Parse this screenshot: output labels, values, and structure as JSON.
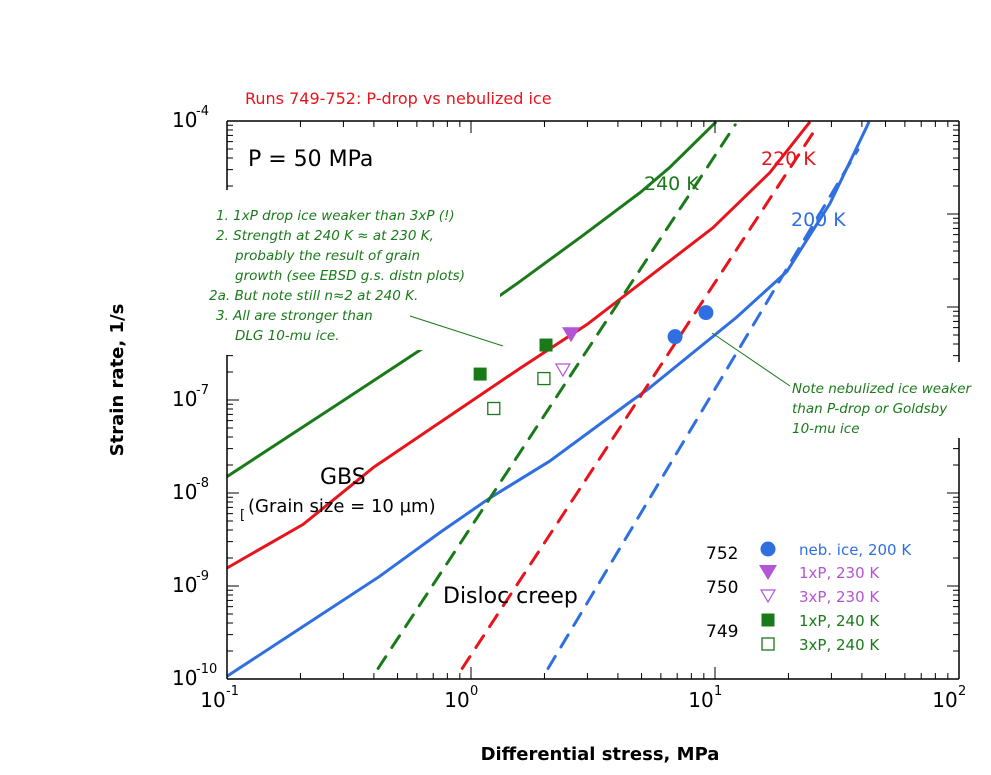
{
  "chart_data": {
    "type": "line",
    "title": "Runs 749-752: P-drop vs nebulized ice",
    "xlabel": "Differential stress, MPa",
    "ylabel": "Strain rate, 1/s",
    "xscale": "log",
    "yscale": "log",
    "xlim": [
      0.1,
      100
    ],
    "ylim": [
      1e-10,
      0.0001
    ],
    "x_ticks": [
      {
        "base": "10",
        "exp": "-1",
        "value": 0.1
      },
      {
        "base": "10",
        "exp": "0",
        "value": 1
      },
      {
        "base": "10",
        "exp": "1",
        "value": 10
      },
      {
        "base": "10",
        "exp": "2",
        "value": 100
      }
    ],
    "y_ticks": [
      {
        "base": "10",
        "exp": "-4",
        "value": 0.0001
      },
      {
        "base": "10",
        "exp": "-7",
        "value": 1e-07
      },
      {
        "base": "10",
        "exp": "-8",
        "value": 1e-08
      },
      {
        "base": "10",
        "exp": "-9",
        "value": 1e-09
      },
      {
        "base": "10",
        "exp": "-10",
        "value": 1e-10
      }
    ],
    "colors": {
      "k240": "#1a7a1a",
      "k220": "#e8141c",
      "k200": "#2f6fe0",
      "k230": "#b455d6"
    },
    "series": [
      {
        "name": "240 K total (GBS + disloc)",
        "color": "#1a7a1a",
        "style": "solid",
        "x": [
          0.1,
          0.29,
          0.82,
          1.55,
          2.88,
          4.93,
          6.55,
          10.1
        ],
        "y": [
          1.5e-08,
          9.3e-08,
          5.6e-07,
          1.8e-06,
          5.9e-06,
          1.7e-05,
          3.2e-05,
          9.8e-05
        ]
      },
      {
        "name": "220 K total (GBS + disloc)",
        "color": "#e8141c",
        "style": "solid",
        "x": [
          0.1,
          0.205,
          0.4,
          1.59,
          2.99,
          9.8,
          16.8,
          24.5
        ],
        "y": [
          1.56e-09,
          4.6e-09,
          1.9e-08,
          2.2e-07,
          6.5e-07,
          7.1e-06,
          2.8e-05,
          9.8e-05
        ]
      },
      {
        "name": "200 K total (GBS + disloc)",
        "color": "#2f6fe0",
        "style": "solid",
        "x": [
          0.1,
          0.42,
          0.75,
          1.2,
          2.1,
          4.6,
          5.3,
          12.3,
          19.7,
          29.6,
          42.8
        ],
        "y": [
          1.07e-10,
          1.26e-09,
          3.8e-09,
          8.9e-09,
          2.2e-08,
          1e-07,
          1.3e-07,
          7.8e-07,
          2.4e-06,
          1.3e-05,
          9.8e-05
        ]
      },
      {
        "name": "240 K disloc creep",
        "color": "#1a7a1a",
        "style": "dashed",
        "x": [
          0.416,
          12.1
        ],
        "y": [
          1.3e-10,
          9.1e-05
        ]
      },
      {
        "name": "220 K disloc creep",
        "color": "#e8141c",
        "style": "dashed",
        "x": [
          0.92,
          26.2
        ],
        "y": [
          1.3e-10,
          8.7e-05
        ]
      },
      {
        "name": "200 K disloc creep",
        "color": "#2f6fe0",
        "style": "dashed",
        "x": [
          2.07,
          38.5
        ],
        "y": [
          1.3e-10,
          4.9e-05
        ]
      }
    ],
    "points": [
      {
        "name": "neb. ice, 200 K",
        "run": "752",
        "marker": "circle-filled",
        "color": "#2f6fe0",
        "x": [
          6.86,
          9.18
        ],
        "y": [
          4.8e-07,
          8.7e-07
        ]
      },
      {
        "name": "1xP, 230 K",
        "run": "750",
        "marker": "triangle-down-filled",
        "color": "#b455d6",
        "x": [
          2.57
        ],
        "y": [
          5.1e-07
        ]
      },
      {
        "name": "3xP, 230 K",
        "run": "",
        "marker": "triangle-down-open",
        "color": "#b455d6",
        "x": [
          2.38
        ],
        "y": [
          2.1e-07
        ]
      },
      {
        "name": "1xP, 240 K",
        "run": "749",
        "marker": "square-filled",
        "color": "#1a7a1a",
        "x": [
          1.09,
          2.03
        ],
        "y": [
          1.9e-07,
          3.9e-07
        ]
      },
      {
        "name": "3xP, 240 K",
        "run": "",
        "marker": "square-open",
        "color": "#1a7a1a",
        "x": [
          1.24,
          1.99
        ],
        "y": [
          8.1e-08,
          1.7e-07
        ]
      }
    ],
    "curve_labels": [
      {
        "text": "240 K",
        "color": "#1a7a1a"
      },
      {
        "text": "220 K",
        "color": "#e8141c"
      },
      {
        "text": "200 K",
        "color": "#2f6fe0"
      }
    ],
    "annotations": {
      "pressure": "P = 50 MPa",
      "gbs": "GBS",
      "grain_size": "(Grain size = 10 µm)",
      "disloc": "Disloc creep",
      "notes_left": [
        "1. 1xP drop ice weaker than 3xP (!)",
        "2. Strength at 240 K ≈ at 230 K,",
        "probably the result of grain",
        "growth (see EBSD g.s. distn plots)",
        "2a. But note still n≈2 at 240 K.",
        "3. All are stronger than",
        "DLG 10-mu ice."
      ],
      "notes_right": [
        "Note nebulized ice weaker",
        "than P-drop or Goldsby",
        "10-mu ice"
      ]
    },
    "legend_position": "bottom-right",
    "grid": false
  }
}
